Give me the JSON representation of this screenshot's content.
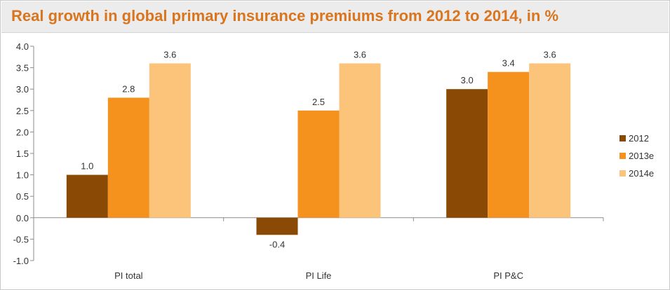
{
  "chart_data": {
    "type": "bar",
    "title": "Real growth in global primary insurance premiums from 2012 to 2014, in %",
    "categories": [
      "PI total",
      "PI Life",
      "PI P&C"
    ],
    "series": [
      {
        "name": "2012",
        "values": [
          1.0,
          -0.4,
          3.0
        ],
        "labels": [
          "1.0",
          "-0.4",
          "3.0"
        ],
        "color": "#8a4a06"
      },
      {
        "name": "2013e",
        "values": [
          2.8,
          2.5,
          3.4
        ],
        "labels": [
          "2.8",
          "2.5",
          "3.4"
        ],
        "color": "#f5921e"
      },
      {
        "name": "2014e",
        "values": [
          3.6,
          3.6,
          3.6
        ],
        "labels": [
          "3.6",
          "3.6",
          "3.6"
        ],
        "color": "#fbc47a"
      }
    ],
    "yticks": [
      "4.0",
      "3.5",
      "3.0",
      "2.5",
      "2.0",
      "1.5",
      "1.0",
      "0.5",
      "0.0",
      "-0.5",
      "-1.0"
    ],
    "ylim": [
      -1.0,
      4.0
    ],
    "grid": false,
    "legend": "right",
    "title_color": "#d9751e"
  }
}
